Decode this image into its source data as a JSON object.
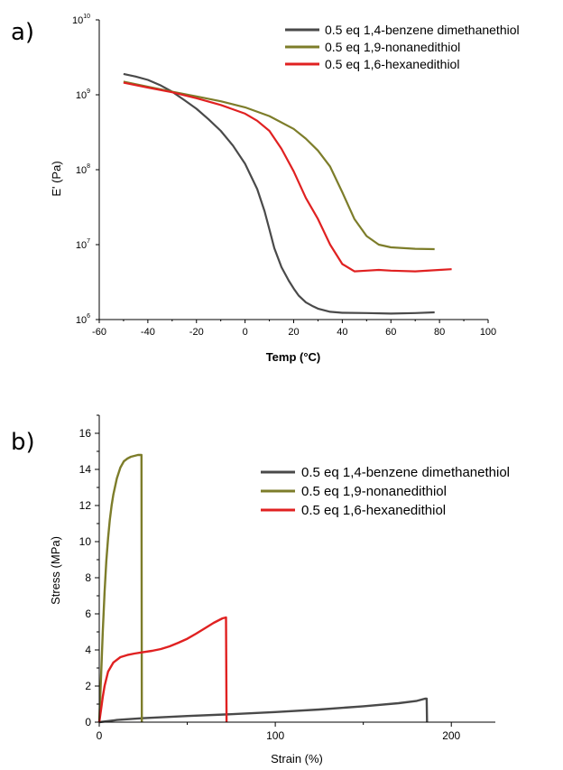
{
  "chart_data": [
    {
      "panel_label": "a)",
      "type": "line",
      "xlabel": "Temp (°C)",
      "ylabel": "E' (Pa)",
      "xlim": [
        -60,
        100
      ],
      "ylim": [
        1000000,
        10000000000
      ],
      "y_scale": "log",
      "x_ticks": [
        -60,
        -40,
        -20,
        0,
        20,
        40,
        60,
        80,
        100
      ],
      "y_ticks": [
        {
          "value": 1000000,
          "base": "10",
          "exp": "6"
        },
        {
          "value": 10000000,
          "base": "10",
          "exp": "7"
        },
        {
          "value": 100000000,
          "base": "10",
          "exp": "8"
        },
        {
          "value": 1000000000,
          "base": "10",
          "exp": "9"
        },
        {
          "value": 10000000000,
          "base": "10",
          "exp": "10"
        }
      ],
      "legend": "top-right",
      "grid": false,
      "series": [
        {
          "name": "0.5 eq 1,4-benzene dimethanethiol",
          "color": "#4a4a4a",
          "x": [
            -50,
            -45,
            -40,
            -35,
            -30,
            -25,
            -20,
            -15,
            -10,
            -5,
            0,
            5,
            8,
            10,
            12,
            15,
            18,
            20,
            22,
            25,
            28,
            30,
            35,
            40,
            50,
            60,
            70,
            78
          ],
          "y": [
            1900000000,
            1750000000,
            1580000000,
            1350000000,
            1100000000,
            850000000,
            650000000,
            470000000,
            330000000,
            210000000,
            120000000,
            55000000,
            28000000,
            16000000,
            9000000,
            5000000,
            3300000,
            2600000,
            2100000,
            1700000,
            1500000,
            1400000,
            1270000,
            1230000,
            1220000,
            1200000,
            1220000,
            1250000
          ]
        },
        {
          "name": "0.5 eq 1,9-nonanedithiol",
          "color": "#7d7d2a",
          "x": [
            -50,
            -40,
            -30,
            -20,
            -10,
            0,
            10,
            20,
            25,
            30,
            35,
            40,
            45,
            50,
            55,
            60,
            70,
            78
          ],
          "y": [
            1500000000,
            1280000000,
            1100000000,
            950000000,
            820000000,
            680000000,
            520000000,
            350000000,
            260000000,
            180000000,
            110000000,
            50000000,
            22000000,
            13000000,
            10000000,
            9200000,
            8800000,
            8700000
          ]
        },
        {
          "name": "0.5 eq 1,6-hexanedithiol",
          "color": "#e02121",
          "x": [
            -50,
            -40,
            -30,
            -20,
            -10,
            0,
            5,
            10,
            15,
            20,
            25,
            30,
            35,
            40,
            45,
            50,
            55,
            60,
            70,
            80,
            85
          ],
          "y": [
            1450000000,
            1250000000,
            1080000000,
            900000000,
            730000000,
            560000000,
            450000000,
            330000000,
            190000000,
            95000000,
            42000000,
            22000000,
            10000000,
            5500000,
            4400000,
            4500000,
            4600000,
            4500000,
            4400000,
            4600000,
            4700000
          ]
        }
      ]
    },
    {
      "panel_label": "b)",
      "type": "line",
      "xlabel": "Strain (%)",
      "ylabel": "Stress (MPa)",
      "xlim": [
        0,
        225
      ],
      "ylim": [
        0,
        17
      ],
      "x_ticks": [
        0,
        100,
        200
      ],
      "y_ticks": [
        0,
        2,
        4,
        6,
        8,
        10,
        12,
        14,
        16
      ],
      "legend": "right",
      "grid": false,
      "series": [
        {
          "name": "0.5 eq 1,4-benzene dimethanethiol",
          "color": "#4a4a4a",
          "x": [
            0,
            10,
            25,
            50,
            75,
            100,
            125,
            150,
            170,
            180,
            185,
            186,
            186.2
          ],
          "y": [
            0,
            0.12,
            0.22,
            0.34,
            0.44,
            0.56,
            0.7,
            0.88,
            1.05,
            1.17,
            1.3,
            1.3,
            0
          ]
        },
        {
          "name": "0.5 eq 1,9-nonanedithiol",
          "color": "#7d7d2a",
          "x": [
            0,
            1,
            2,
            3,
            4,
            5,
            6,
            7,
            8,
            10,
            12,
            14,
            16,
            18,
            20,
            22,
            24,
            24.2
          ],
          "y": [
            0,
            2.5,
            5,
            7.2,
            8.9,
            10.2,
            11.2,
            12,
            12.6,
            13.5,
            14.1,
            14.45,
            14.6,
            14.7,
            14.75,
            14.8,
            14.8,
            0
          ]
        },
        {
          "name": "0.5 eq 1,6-hexanedithiol",
          "color": "#e02121",
          "x": [
            0,
            1,
            2,
            3,
            5,
            8,
            12,
            16,
            20,
            25,
            30,
            35,
            40,
            45,
            50,
            55,
            60,
            65,
            70,
            72,
            72.3
          ],
          "y": [
            0,
            0.7,
            1.4,
            2,
            2.8,
            3.3,
            3.6,
            3.72,
            3.8,
            3.88,
            3.95,
            4.05,
            4.2,
            4.4,
            4.62,
            4.9,
            5.2,
            5.5,
            5.75,
            5.8,
            0
          ]
        }
      ]
    }
  ]
}
